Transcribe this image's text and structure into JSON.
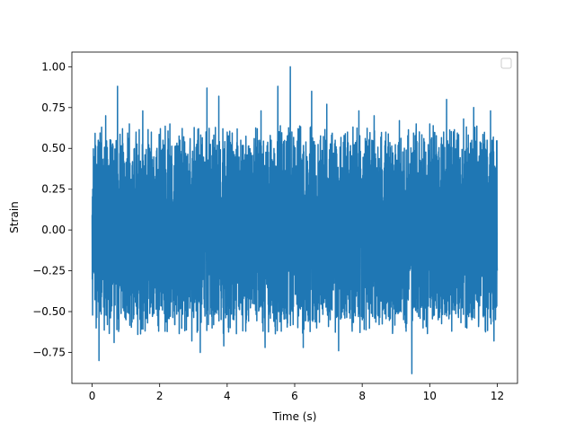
{
  "chart_data": {
    "type": "line",
    "title": "",
    "xlabel": "Time (s)",
    "ylabel": "Strain",
    "xlim": [
      -0.6,
      12.6
    ],
    "ylim": [
      -0.94,
      1.09
    ],
    "x_ticks": [
      0,
      2,
      4,
      6,
      8,
      10,
      12
    ],
    "x_tick_labels": [
      "0",
      "2",
      "4",
      "6",
      "8",
      "10",
      "12"
    ],
    "y_ticks": [
      -0.75,
      -0.5,
      -0.25,
      0.0,
      0.25,
      0.5,
      0.75,
      1.0
    ],
    "y_tick_labels": [
      "−0.75",
      "−0.50",
      "−0.25",
      "0.00",
      "0.25",
      "0.50",
      "0.75",
      "1.00"
    ],
    "grid": false,
    "legend": {
      "placement": "upper right",
      "entries": []
    },
    "series": [
      {
        "color": "#1f77b4",
        "x_range": [
          0,
          12
        ],
        "band": [
          -0.55,
          0.55
        ],
        "typical_extremes": [
          -0.62,
          0.64
        ],
        "peaks": [
          {
            "x": 0.05,
            "y": 0.45
          },
          {
            "x": 0.12,
            "y": -0.6
          },
          {
            "x": 0.18,
            "y": 0.55
          },
          {
            "x": 0.2,
            "y": -0.8
          },
          {
            "x": 0.28,
            "y": 0.63
          },
          {
            "x": 0.4,
            "y": 0.7
          },
          {
            "x": 0.45,
            "y": -0.58
          },
          {
            "x": 0.55,
            "y": 0.55
          },
          {
            "x": 0.65,
            "y": -0.69
          },
          {
            "x": 0.75,
            "y": 0.88
          },
          {
            "x": 0.9,
            "y": 0.62
          },
          {
            "x": 1.0,
            "y": -0.55
          },
          {
            "x": 1.1,
            "y": 0.65
          },
          {
            "x": 1.3,
            "y": 0.6
          },
          {
            "x": 1.35,
            "y": -0.64
          },
          {
            "x": 1.5,
            "y": 0.73
          },
          {
            "x": 1.75,
            "y": 0.6
          },
          {
            "x": 1.97,
            "y": -0.62
          },
          {
            "x": 2.1,
            "y": 0.55
          },
          {
            "x": 2.3,
            "y": 0.65
          },
          {
            "x": 2.45,
            "y": -0.58
          },
          {
            "x": 2.6,
            "y": 0.55
          },
          {
            "x": 2.9,
            "y": 0.56
          },
          {
            "x": 2.95,
            "y": -0.68
          },
          {
            "x": 3.15,
            "y": 0.62
          },
          {
            "x": 3.2,
            "y": -0.75
          },
          {
            "x": 3.4,
            "y": 0.87
          },
          {
            "x": 3.55,
            "y": -0.6
          },
          {
            "x": 3.75,
            "y": 0.82
          },
          {
            "x": 3.9,
            "y": -0.71
          },
          {
            "x": 4.0,
            "y": 0.6
          },
          {
            "x": 4.2,
            "y": -0.55
          },
          {
            "x": 4.4,
            "y": 0.55
          },
          {
            "x": 4.55,
            "y": -0.62
          },
          {
            "x": 4.8,
            "y": 0.56
          },
          {
            "x": 5.0,
            "y": 0.73
          },
          {
            "x": 5.12,
            "y": -0.72
          },
          {
            "x": 5.3,
            "y": 0.55
          },
          {
            "x": 5.5,
            "y": 0.88
          },
          {
            "x": 5.6,
            "y": -0.62
          },
          {
            "x": 5.87,
            "y": 1.0
          },
          {
            "x": 5.95,
            "y": -0.58
          },
          {
            "x": 6.1,
            "y": 0.62
          },
          {
            "x": 6.25,
            "y": -0.72
          },
          {
            "x": 6.5,
            "y": 0.85
          },
          {
            "x": 6.65,
            "y": -0.6
          },
          {
            "x": 6.95,
            "y": 0.77
          },
          {
            "x": 7.05,
            "y": -0.55
          },
          {
            "x": 7.2,
            "y": 0.55
          },
          {
            "x": 7.3,
            "y": -0.74
          },
          {
            "x": 7.5,
            "y": 0.59
          },
          {
            "x": 7.7,
            "y": -0.62
          },
          {
            "x": 7.9,
            "y": 0.73
          },
          {
            "x": 8.0,
            "y": -0.55
          },
          {
            "x": 8.2,
            "y": 0.55
          },
          {
            "x": 8.35,
            "y": 0.7
          },
          {
            "x": 8.5,
            "y": -0.58
          },
          {
            "x": 8.7,
            "y": 0.6
          },
          {
            "x": 8.9,
            "y": -0.6
          },
          {
            "x": 9.1,
            "y": 0.67
          },
          {
            "x": 9.3,
            "y": -0.62
          },
          {
            "x": 9.47,
            "y": -0.88
          },
          {
            "x": 9.6,
            "y": 0.65
          },
          {
            "x": 9.8,
            "y": -0.6
          },
          {
            "x": 10.0,
            "y": 0.65
          },
          {
            "x": 10.25,
            "y": -0.55
          },
          {
            "x": 10.5,
            "y": 0.8
          },
          {
            "x": 10.65,
            "y": -0.62
          },
          {
            "x": 10.8,
            "y": 0.55
          },
          {
            "x": 11.0,
            "y": 0.68
          },
          {
            "x": 11.1,
            "y": -0.6
          },
          {
            "x": 11.3,
            "y": 0.75
          },
          {
            "x": 11.45,
            "y": -0.55
          },
          {
            "x": 11.7,
            "y": 0.55
          },
          {
            "x": 11.8,
            "y": 0.73
          },
          {
            "x": 11.9,
            "y": -0.68
          },
          {
            "x": 11.96,
            "y": 0.38
          },
          {
            "x": 12.0,
            "y": -0.25
          }
        ]
      }
    ]
  }
}
